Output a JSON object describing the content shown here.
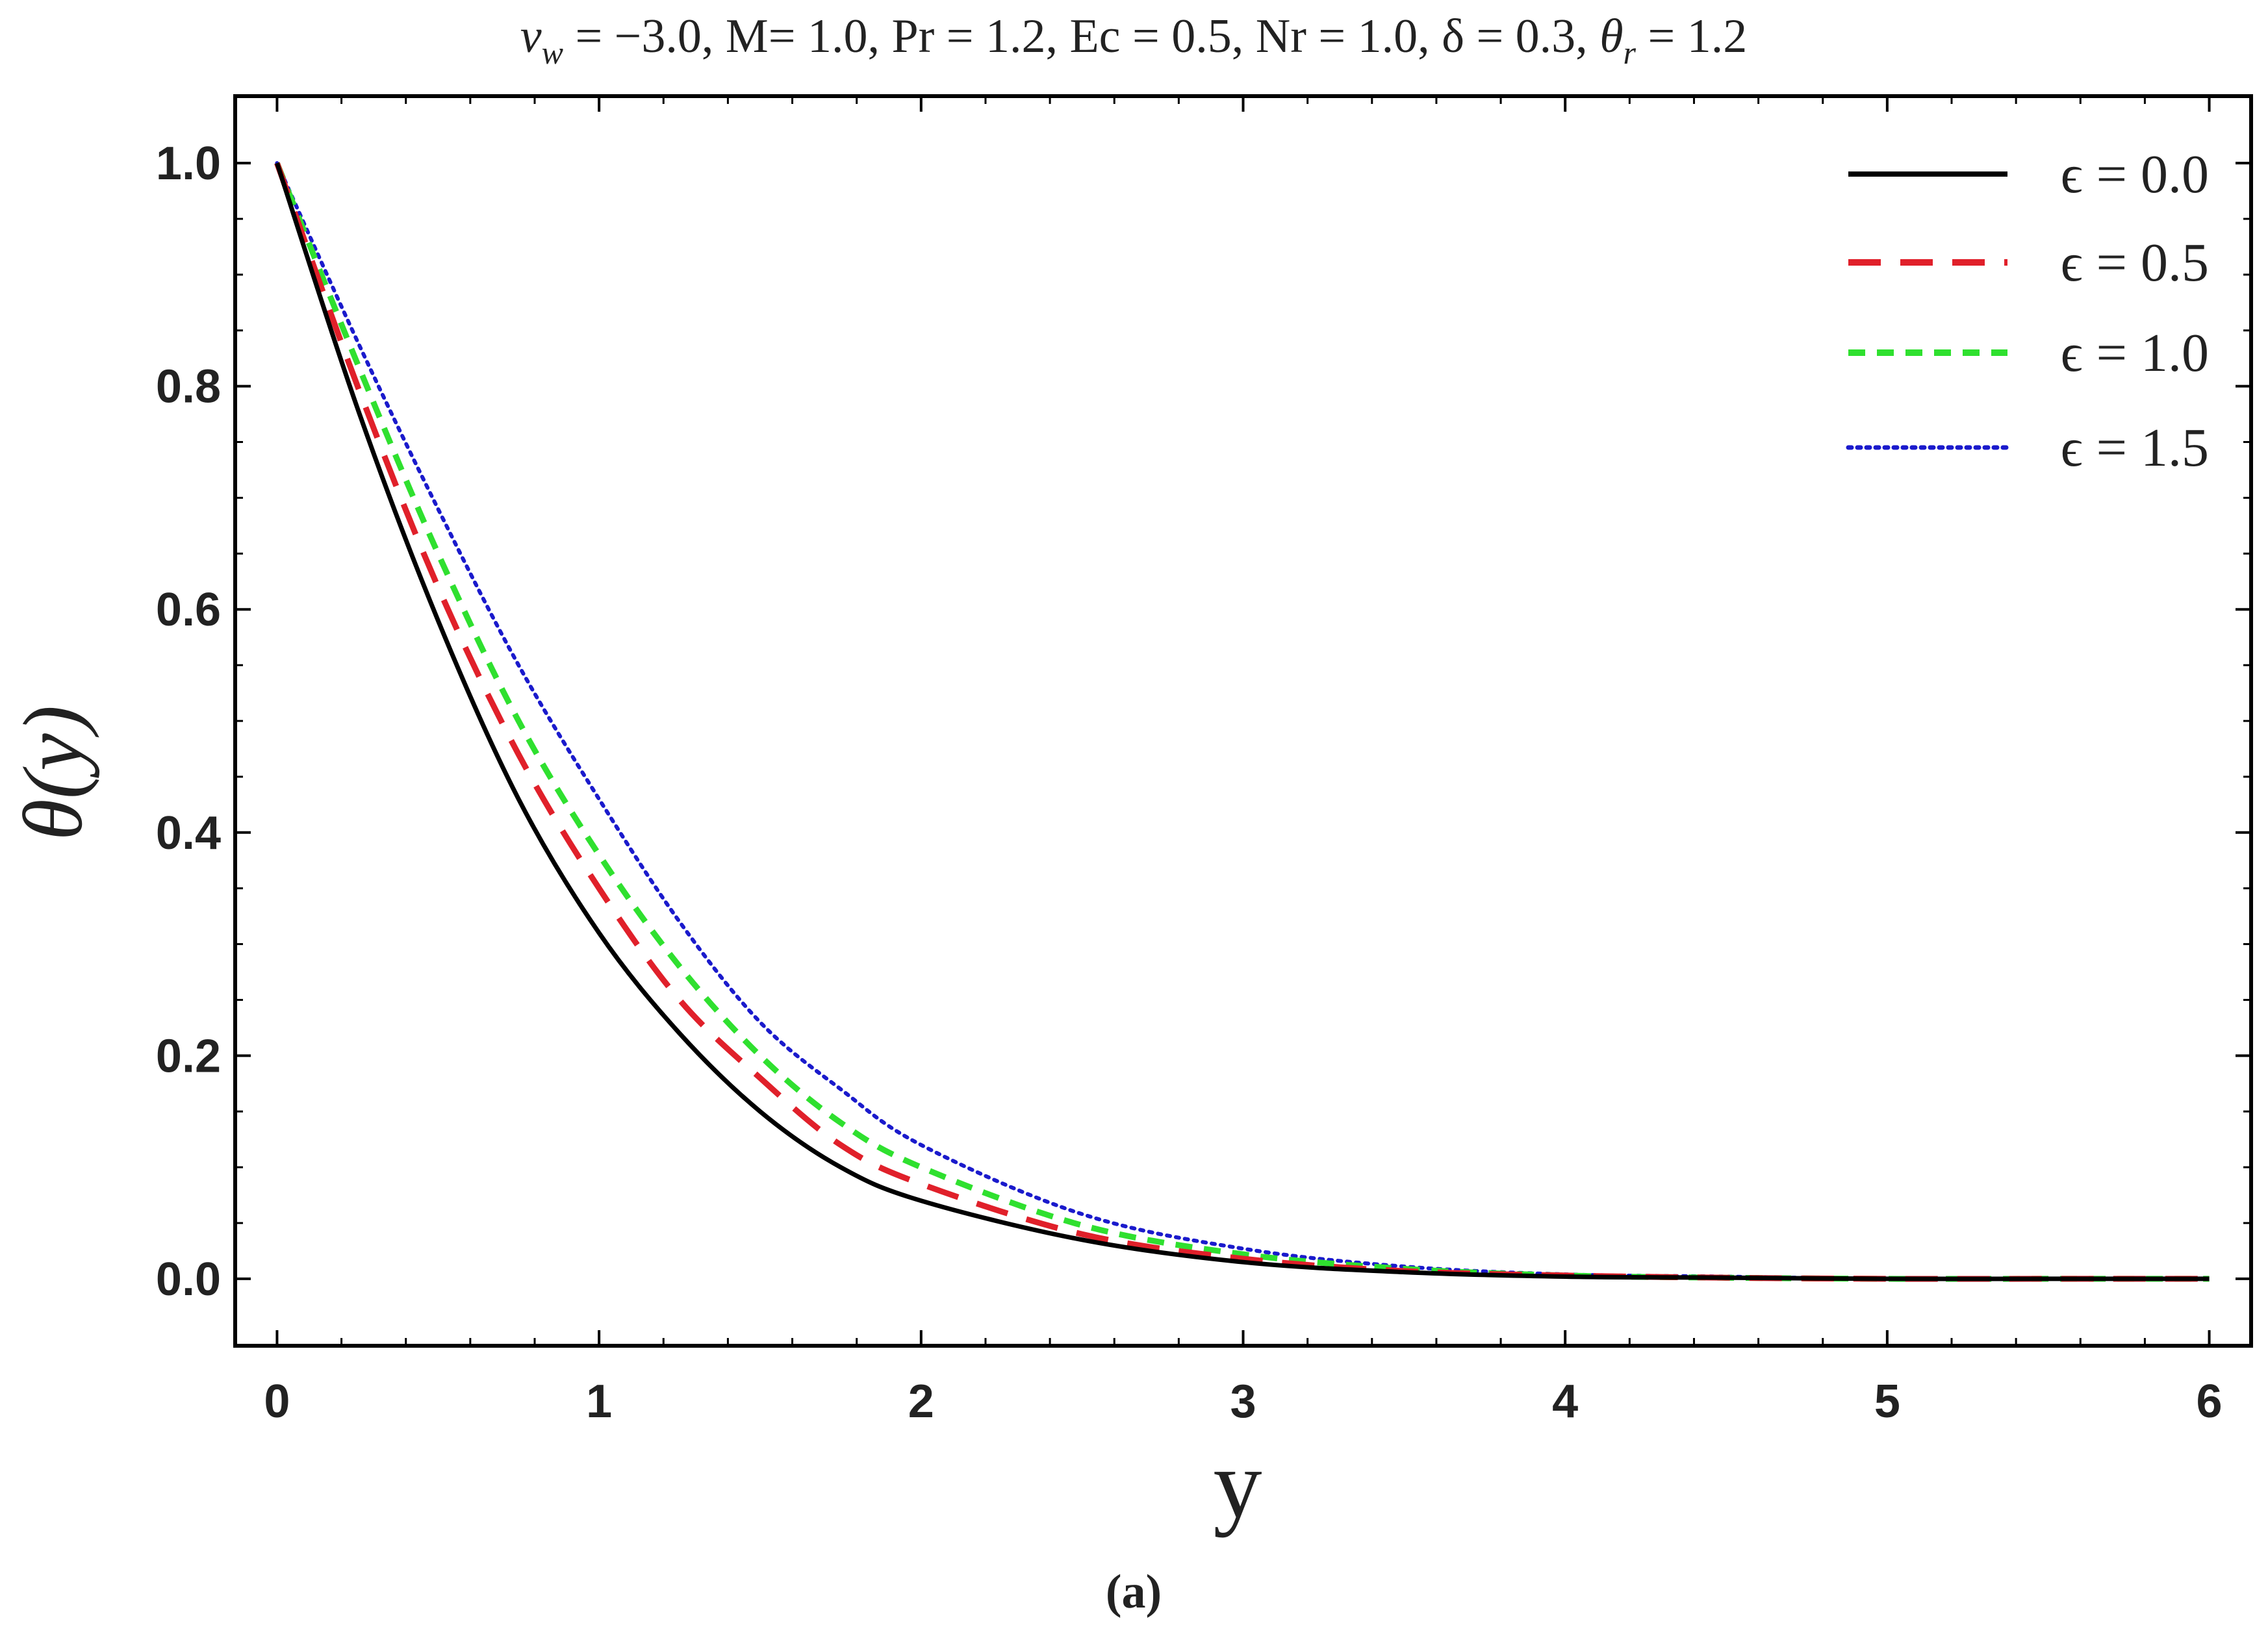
{
  "chart_data": {
    "type": "line",
    "title": "v_w = −3.0, M= 1.0, Pr = 1.2, Ec = 0.5, Nr = 1.0, δ = 0.3, θ_r = 1.2",
    "title_parts": {
      "v": "v",
      "w": "w",
      "rest1": " = −3.0, M= 1.0, Pr = 1.2, Ec = 0.5, Nr = 1.0, δ = 0.3, ",
      "theta": "θ",
      "r": "r",
      "rest2": " = 1.2"
    },
    "xlabel": "y",
    "ylabel": "θ(y)",
    "caption": "(a)",
    "xlim": [
      -0.13,
      6.13
    ],
    "ylim": [
      -0.06,
      1.06
    ],
    "xticks": [
      0,
      1,
      2,
      3,
      4,
      5,
      6
    ],
    "xtick_labels": [
      "0",
      "1",
      "2",
      "3",
      "4",
      "5",
      "6"
    ],
    "yticks": [
      0.0,
      0.2,
      0.4,
      0.6,
      0.8,
      1.0
    ],
    "ytick_labels": [
      "0.0",
      "0.2",
      "0.4",
      "0.6",
      "0.8",
      "1.0"
    ],
    "grid": false,
    "legend_position": "top-right",
    "x": [
      0,
      0.25,
      0.5,
      0.75,
      1.0,
      1.25,
      1.5,
      1.75,
      2.0,
      2.5,
      3.0,
      3.5,
      4.0,
      4.5,
      5.0,
      5.5,
      6.0
    ],
    "series": [
      {
        "name": "ϵ = 0.0",
        "color": "#000000",
        "style": "solid",
        "values": [
          1.0,
          0.78,
          0.59,
          0.43,
          0.31,
          0.22,
          0.15,
          0.1,
          0.07,
          0.035,
          0.015,
          0.006,
          0.002,
          0.001,
          0.0,
          0.0,
          0.0
        ]
      },
      {
        "name": "ϵ = 0.5",
        "color": "#e0202a",
        "style": "long-dash",
        "values": [
          1.0,
          0.8,
          0.62,
          0.47,
          0.35,
          0.25,
          0.18,
          0.12,
          0.085,
          0.04,
          0.018,
          0.007,
          0.003,
          0.001,
          0.0,
          0.0,
          0.0
        ]
      },
      {
        "name": "ϵ = 1.0",
        "color": "#2fe02f",
        "style": "short-dash",
        "values": [
          1.0,
          0.82,
          0.65,
          0.5,
          0.38,
          0.28,
          0.2,
          0.14,
          0.1,
          0.048,
          0.022,
          0.009,
          0.003,
          0.001,
          0.0,
          0.0,
          0.0
        ]
      },
      {
        "name": "ϵ = 1.5",
        "color": "#1a1acc",
        "style": "dotted",
        "values": [
          1.0,
          0.84,
          0.69,
          0.55,
          0.43,
          0.32,
          0.23,
          0.17,
          0.12,
          0.058,
          0.027,
          0.011,
          0.004,
          0.002,
          0.0,
          0.0,
          0.0
        ]
      }
    ]
  }
}
